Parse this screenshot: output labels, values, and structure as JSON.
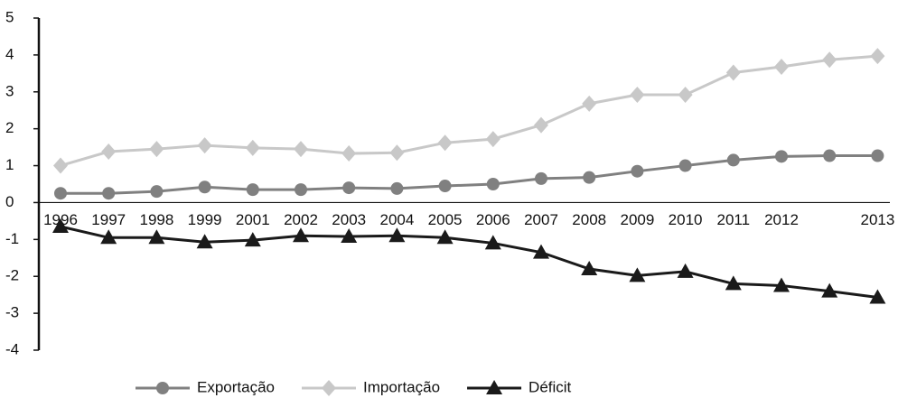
{
  "chart_data": {
    "type": "line",
    "categories": [
      "1996",
      "1997",
      "1998",
      "1999",
      "2001",
      "2002",
      "2003",
      "2004",
      "2005",
      "2006",
      "2007",
      "2008",
      "2009",
      "2010",
      "2011",
      "2012",
      null,
      "2013"
    ],
    "series": [
      {
        "name": "Exportação",
        "color": "#808080",
        "marker": "circle",
        "values": [
          0.25,
          0.25,
          0.3,
          0.42,
          0.35,
          0.35,
          0.4,
          0.38,
          0.45,
          0.5,
          0.65,
          0.68,
          0.85,
          1.0,
          1.15,
          1.25,
          1.27,
          1.27
        ]
      },
      {
        "name": "Importação",
        "color": "#c8c8c8",
        "marker": "diamond",
        "values": [
          1.0,
          1.38,
          1.45,
          1.55,
          1.48,
          1.45,
          1.33,
          1.35,
          1.62,
          1.72,
          2.1,
          2.68,
          2.92,
          2.92,
          3.52,
          3.68,
          3.87,
          3.97
        ]
      },
      {
        "name": "Déficit",
        "color": "#1a1a1a",
        "marker": "triangle",
        "values": [
          -0.65,
          -0.95,
          -0.95,
          -1.07,
          -1.02,
          -0.9,
          -0.92,
          -0.9,
          -0.95,
          -1.1,
          -1.35,
          -1.8,
          -1.98,
          -1.87,
          -2.2,
          -2.25,
          -2.4,
          -2.57
        ]
      }
    ],
    "ylim": [
      -4,
      5
    ],
    "yticks": [
      -4,
      -3,
      -2,
      -1,
      0,
      1,
      2,
      3,
      4,
      5
    ],
    "grid": false,
    "legend": "bottom"
  }
}
